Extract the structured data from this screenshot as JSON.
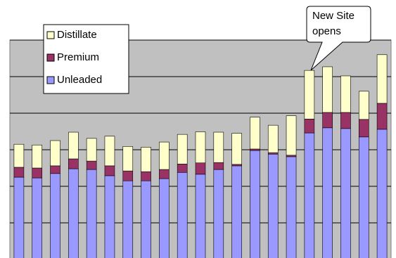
{
  "chart_data": {
    "type": "stacked_bar",
    "categories": [
      null,
      null,
      null,
      null,
      null,
      null,
      null,
      null,
      null,
      null,
      null,
      null,
      null,
      null,
      null,
      null,
      null,
      null,
      null,
      null,
      null
    ],
    "series": [
      {
        "name": "Unleaded",
        "color": "#9999ff",
        "values": [
          22.5,
          22.3,
          23.5,
          24.8,
          24.6,
          22.9,
          21.5,
          21.5,
          22.1,
          23.8,
          23.3,
          24.6,
          25.6,
          29.8,
          28.8,
          28.1,
          34.6,
          36.0,
          35.8,
          33.5,
          35.6
        ]
      },
      {
        "name": "Premium",
        "color": "#993366",
        "values": [
          2.7,
          2.7,
          2.1,
          2.7,
          2.3,
          2.7,
          2.7,
          2.5,
          2.5,
          2.3,
          3.1,
          1.9,
          0.4,
          0.4,
          0.4,
          0.4,
          3.8,
          4.2,
          4.4,
          4.8,
          7.1
        ]
      },
      {
        "name": "Distillate",
        "color": "#ffffcc",
        "values": [
          6.3,
          6.3,
          6.9,
          7.3,
          6.2,
          8.1,
          6.7,
          6.7,
          7.5,
          8.1,
          8.5,
          8.3,
          8.5,
          8.7,
          7.5,
          10.8,
          13.3,
          12.5,
          10.0,
          7.7,
          13.3
        ]
      }
    ],
    "ylim": [
      0,
      60
    ],
    "yticks": [
      0,
      10,
      20,
      30,
      40,
      50,
      60
    ],
    "grid": true,
    "legend": "top-left",
    "annotation": [
      "New Site",
      "opens"
    ]
  }
}
